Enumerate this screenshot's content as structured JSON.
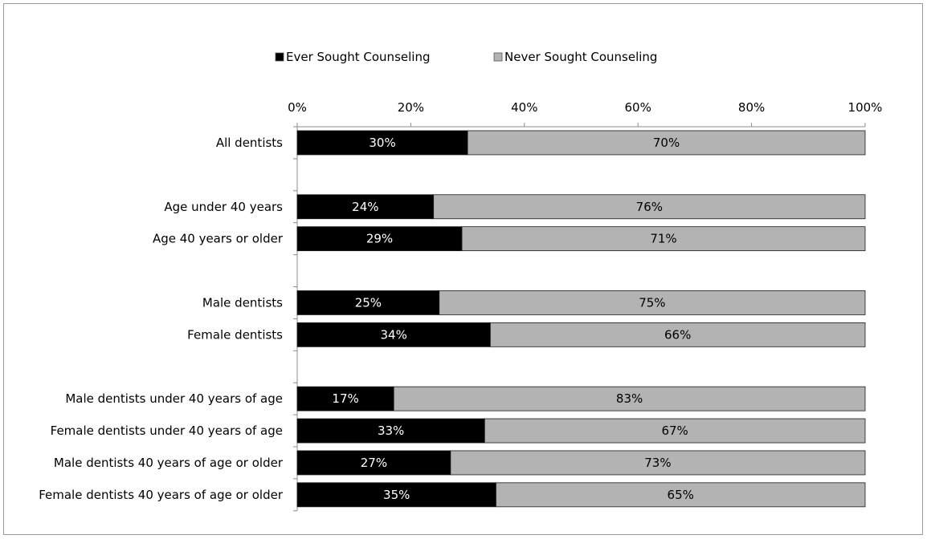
{
  "chart_data": {
    "type": "bar",
    "orientation": "horizontal",
    "stacked": true,
    "percent_stacked": true,
    "legend_position": "top",
    "grid": false,
    "xlim": [
      0,
      100
    ],
    "x_ticks": [
      "0%",
      "20%",
      "40%",
      "60%",
      "80%",
      "100%"
    ],
    "x_tick_values": [
      0,
      20,
      40,
      60,
      80,
      100
    ],
    "categories": [
      "All dentists",
      "",
      "Age under 40 years",
      "Age 40 years or older",
      "",
      "Male dentists",
      "Female dentists",
      "",
      "Male dentists under 40 years of age",
      "Female dentists under 40 years of age",
      "Male dentists 40 years of age or older",
      "Female dentists 40 years of age or older"
    ],
    "series": [
      {
        "name": "Ever Sought Counseling",
        "color": "#000000",
        "values": [
          30,
          null,
          24,
          29,
          null,
          25,
          34,
          null,
          17,
          33,
          27,
          35
        ],
        "labels": [
          "30%",
          "",
          "24%",
          "29%",
          "",
          "25%",
          "34%",
          "",
          "17%",
          "33%",
          "27%",
          "35%"
        ]
      },
      {
        "name": "Never Sought Counseling",
        "color": "#b3b3b3",
        "values": [
          70,
          null,
          76,
          71,
          null,
          75,
          66,
          null,
          83,
          67,
          73,
          65
        ],
        "labels": [
          "70%",
          "",
          "76%",
          "71%",
          "",
          "75%",
          "66%",
          "",
          "83%",
          "67%",
          "73%",
          "65%"
        ]
      }
    ]
  }
}
